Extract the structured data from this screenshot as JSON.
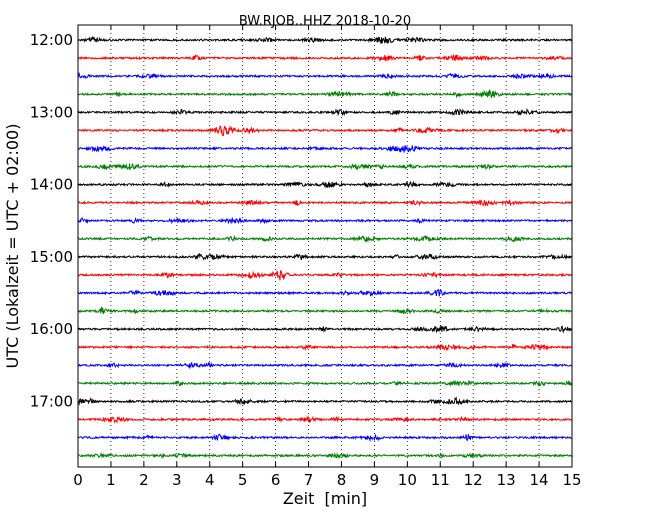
{
  "chart_data": {
    "type": "line",
    "title": "BW.RJOB..HHZ 2018-10-20",
    "xlabel": "Zeit  [min]",
    "ylabel": "UTC (Lokalzeit = UTC + 02:00)",
    "xlim": [
      0,
      15
    ],
    "x_ticks": [
      0,
      1,
      2,
      3,
      4,
      5,
      6,
      7,
      8,
      9,
      10,
      11,
      12,
      13,
      14,
      15
    ],
    "x_tick_labels": [
      "0",
      "1",
      "2",
      "3",
      "4",
      "5",
      "6",
      "7",
      "8",
      "9",
      "10",
      "11",
      "12",
      "13",
      "14",
      "15"
    ],
    "y_tick_labels": [
      "12:00",
      "13:00",
      "14:00",
      "15:00",
      "16:00",
      "17:00"
    ],
    "y_tick_rows": [
      0,
      4,
      8,
      12,
      16,
      20
    ],
    "grid": {
      "vertical": "dotted",
      "horizontal": false
    },
    "trace_colors": [
      "#000000",
      "#ff0000",
      "#0000ff",
      "#008000"
    ],
    "row_count": 24,
    "rows": [
      {
        "start": "12:00",
        "color": "#000000"
      },
      {
        "start": "12:15",
        "color": "#ff0000"
      },
      {
        "start": "12:30",
        "color": "#0000ff"
      },
      {
        "start": "12:45",
        "color": "#008000"
      },
      {
        "start": "13:00",
        "color": "#000000"
      },
      {
        "start": "13:15",
        "color": "#ff0000"
      },
      {
        "start": "13:30",
        "color": "#0000ff"
      },
      {
        "start": "13:45",
        "color": "#008000"
      },
      {
        "start": "14:00",
        "color": "#000000"
      },
      {
        "start": "14:15",
        "color": "#ff0000"
      },
      {
        "start": "14:30",
        "color": "#0000ff"
      },
      {
        "start": "14:45",
        "color": "#008000"
      },
      {
        "start": "15:00",
        "color": "#000000"
      },
      {
        "start": "15:15",
        "color": "#ff0000"
      },
      {
        "start": "15:30",
        "color": "#0000ff"
      },
      {
        "start": "15:45",
        "color": "#008000"
      },
      {
        "start": "16:00",
        "color": "#000000"
      },
      {
        "start": "16:15",
        "color": "#ff0000"
      },
      {
        "start": "16:30",
        "color": "#0000ff"
      },
      {
        "start": "16:45",
        "color": "#008000"
      },
      {
        "start": "17:00",
        "color": "#000000"
      },
      {
        "start": "17:15",
        "color": "#ff0000"
      },
      {
        "start": "17:30",
        "color": "#0000ff"
      },
      {
        "start": "17:45",
        "color": "#008000"
      }
    ]
  }
}
